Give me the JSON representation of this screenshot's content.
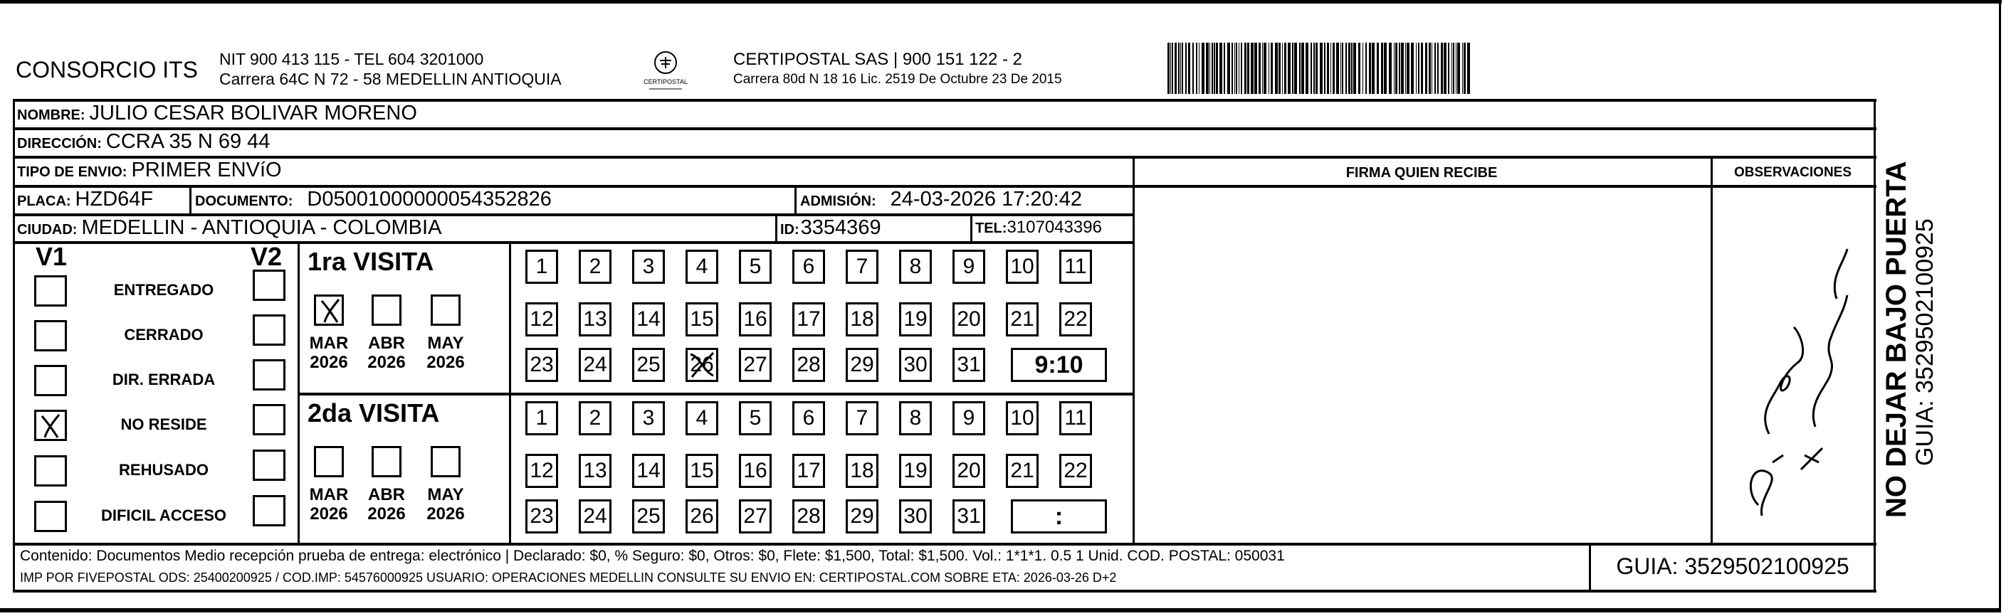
{
  "header": {
    "company": "CONSORCIO ITS",
    "company_nit": "NIT 900 413 115 - TEL 604 3201000",
    "company_address": "Carrera 64C N 72 - 58 MEDELLIN ANTIOQUIA",
    "logo_text": "CERTIPOSTAL",
    "carrier": "CERTIPOSTAL SAS | 900 151 122 - 2",
    "carrier_license": "Carrera 80d N 18 16  Lic. 2519 De Octubre 23 De 2015"
  },
  "recipient": {
    "nombre_label": "NOMBRE:",
    "nombre": "JULIO CESAR BOLIVAR MORENO",
    "direccion_label": "DIRECCIÓN:",
    "direccion": "CCRA 35 N 69 44",
    "tipo_label": "TIPO DE ENVIO:",
    "tipo": "PRIMER ENVíO",
    "placa_label": "PLACA:",
    "placa": "HZD64F",
    "documento_label": "DOCUMENTO:",
    "documento": "D05001000000054352826",
    "admision_label": "ADMISIÓN:",
    "admision": "24-03-2026 17:20:42",
    "ciudad_label": "CIUDAD:",
    "ciudad": "MEDELLIN - ANTIOQUIA - COLOMBIA",
    "id_label": "ID:",
    "id": "3354369",
    "tel_label": "TEL:",
    "tel": "3107043396"
  },
  "columns": {
    "firma": "FIRMA QUIEN RECIBE",
    "observaciones": "OBSERVACIONES"
  },
  "status": {
    "v1_label": "V1",
    "v2_label": "V2",
    "items": [
      {
        "label": "ENTREGADO",
        "v1": false,
        "v2": false
      },
      {
        "label": "CERRADO",
        "v1": false,
        "v2": false
      },
      {
        "label": "DIR. ERRADA",
        "v1": false,
        "v2": false
      },
      {
        "label": "NO RESIDE",
        "v1": true,
        "v2": false
      },
      {
        "label": "REHUSADO",
        "v1": false,
        "v2": false
      },
      {
        "label": "DIFICIL ACCESO",
        "v1": false,
        "v2": false
      }
    ]
  },
  "visits": [
    {
      "title": "1ra VISITA",
      "months": [
        {
          "month": "MAR",
          "year": "2026",
          "checked": true
        },
        {
          "month": "ABR",
          "year": "2026",
          "checked": false
        },
        {
          "month": "MAY",
          "year": "2026",
          "checked": false
        }
      ],
      "days": [
        "1",
        "2",
        "3",
        "4",
        "5",
        "6",
        "7",
        "8",
        "9",
        "10",
        "11",
        "12",
        "13",
        "14",
        "15",
        "16",
        "17",
        "18",
        "19",
        "20",
        "21",
        "22",
        "23",
        "24",
        "25",
        "26",
        "27",
        "28",
        "29",
        "30",
        "31"
      ],
      "marked_day": "26",
      "time": "9:10"
    },
    {
      "title": "2da VISITA",
      "months": [
        {
          "month": "MAR",
          "year": "2026",
          "checked": false
        },
        {
          "month": "ABR",
          "year": "2026",
          "checked": false
        },
        {
          "month": "MAY",
          "year": "2026",
          "checked": false
        }
      ],
      "days": [
        "1",
        "2",
        "3",
        "4",
        "5",
        "6",
        "7",
        "8",
        "9",
        "10",
        "11",
        "12",
        "13",
        "14",
        "15",
        "16",
        "17",
        "18",
        "19",
        "20",
        "21",
        "22",
        "23",
        "24",
        "25",
        "26",
        "27",
        "28",
        "29",
        "30",
        "31"
      ],
      "marked_day": null,
      "time": ":"
    }
  ],
  "side": {
    "warning": "NO DEJAR BAJO PUERTA",
    "guia": "GUIA: 3529502100925"
  },
  "footer": {
    "contenido": "Contenido: Documentos Medio recepción prueba de entrega: electrónico | Declarado: $0, % Seguro: $0, Otros: $0, Flete: $1,500, Total: $1,500. Vol.: 1*1*1. 0.5  1 Unid. COD. POSTAL: 050031",
    "imp": "IMP POR FIVEPOSTAL ODS: 25400200925 / COD.IMP: 54576000925 USUARIO: OPERACIONES MEDELLIN CONSULTE SU ENVIO EN: CERTIPOSTAL.COM SOBRE ETA: 2026-03-26 D+2",
    "guia": "GUIA: 3529502100925"
  },
  "barcode_value": "3529502100925"
}
